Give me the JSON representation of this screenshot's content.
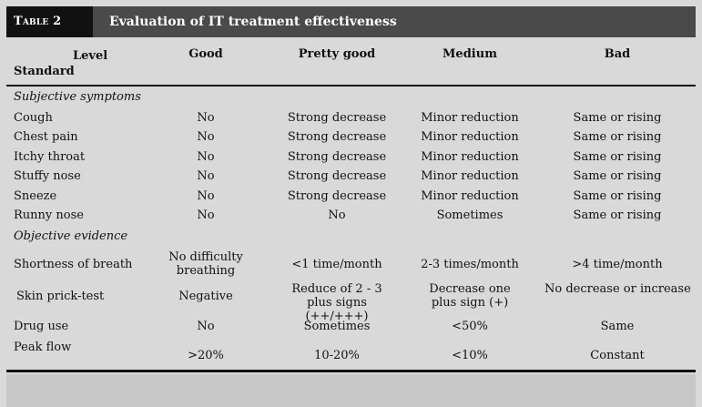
{
  "table": {
    "label": "Table 2",
    "title": "Evaluation of IT treatment effectiveness",
    "header": {
      "level": "Level",
      "standard": "Standard",
      "columns": [
        "Good",
        "Pretty good",
        "Medium",
        "Bad"
      ]
    },
    "sections": [
      {
        "heading": "Subjective symptoms",
        "rows": [
          {
            "name": "Cough",
            "values": [
              "No",
              "Strong decrease",
              "Minor reduction",
              "Same or rising"
            ]
          },
          {
            "name": "Chest pain",
            "values": [
              "No",
              "Strong decrease",
              "Minor reduction",
              "Same or rising"
            ]
          },
          {
            "name": "Itchy throat",
            "values": [
              "No",
              "Strong decrease",
              "Minor reduction",
              "Same or rising"
            ]
          },
          {
            "name": "Stuffy nose",
            "values": [
              "No",
              "Strong decrease",
              "Minor reduction",
              "Same or rising"
            ]
          },
          {
            "name": "Sneeze",
            "values": [
              "No",
              "Strong decrease",
              "Minor reduction",
              "Same or rising"
            ]
          },
          {
            "name": "Runny nose",
            "values": [
              "No",
              "No",
              "Sometimes",
              "Same or rising"
            ]
          }
        ]
      },
      {
        "heading": "Objective evidence",
        "rows": [
          {
            "name": "Shortness of breath",
            "values": [
              "No difficulty breathing",
              "<1 time/month",
              "2-3 times/month",
              ">4 time/month"
            ]
          },
          {
            "name": "Skin prick-test",
            "values": [
              "Negative",
              "Reduce of 2 - 3 plus signs (++/+++)",
              "Decrease one plus sign (+)",
              "No decrease or increase"
            ]
          },
          {
            "name": "Drug use",
            "values": [
              "No",
              "Sometimes",
              "<50%",
              "Same"
            ]
          },
          {
            "name": "Peak flow",
            "values": [
              ">20%",
              "10-20%",
              "<10%",
              "Constant"
            ]
          }
        ]
      }
    ]
  }
}
